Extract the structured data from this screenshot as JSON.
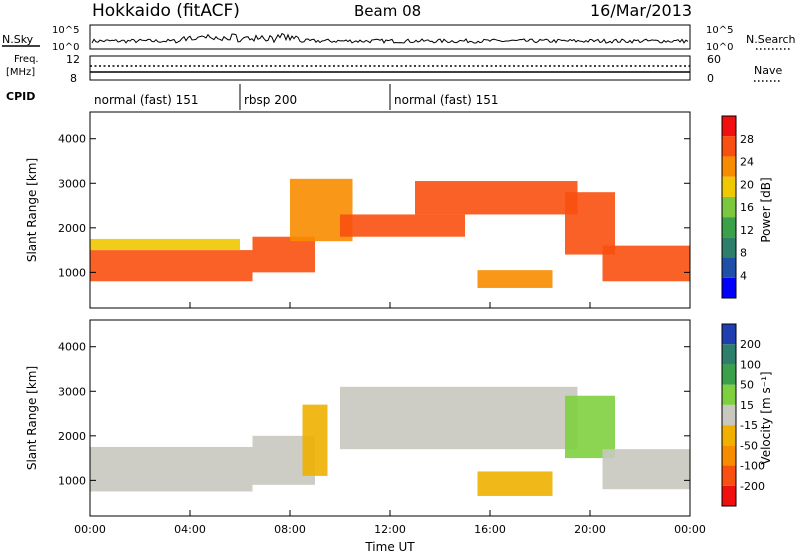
{
  "header": {
    "radar": "Hokkaido (fitACF)",
    "beam": "Beam 08",
    "date": "16/Mar/2013"
  },
  "top_strip": {
    "nsky_label": "N.Sky",
    "nsearch_label": "N.Search",
    "left_ticks": [
      "10^5",
      "10^0"
    ],
    "right_ticks": [
      "10^5",
      "10^0"
    ],
    "freq_label_1": "Freq.",
    "freq_label_2": "[MHz]",
    "freq_ticks": [
      "12",
      "8"
    ],
    "nave_label": "Nave",
    "nave_ticks": [
      "60",
      "0"
    ],
    "cpid_label": "CPID",
    "cpid_segments": [
      {
        "start": 0,
        "end": 6.0,
        "label": "normal (fast) 151"
      },
      {
        "start": 6.0,
        "end": 12.0,
        "label": "rbsp 200"
      },
      {
        "start": 12.0,
        "end": 24.0,
        "label": "normal (fast) 151"
      }
    ]
  },
  "chart_data": [
    {
      "type": "heatmap",
      "title": "",
      "xlabel": "Time UT",
      "ylabel": "Slant Range [km]",
      "x_ticks": [
        "00:00",
        "04:00",
        "08:00",
        "12:00",
        "16:00",
        "20:00",
        "00:00"
      ],
      "y_ticks": [
        "1000",
        "2000",
        "3000",
        "4000"
      ],
      "xlim": [
        0,
        24
      ],
      "ylim": [
        200,
        4600
      ],
      "colorbar": {
        "label": "Power [dB]",
        "ticks": [
          "28",
          "24",
          "20",
          "16",
          "12",
          "8",
          "4"
        ],
        "range": [
          0,
          32
        ],
        "colors": [
          "#0000ff",
          "#1f4fa8",
          "#2e7f6a",
          "#3aa04a",
          "#7bc840",
          "#f0c800",
          "#f88c00",
          "#f85010",
          "#f01010"
        ]
      },
      "bands": [
        {
          "t0": 0,
          "t1": 6.5,
          "r0": 800,
          "r1": 1500,
          "level": 28
        },
        {
          "t0": 0,
          "t1": 6,
          "r0": 1500,
          "r1": 1750,
          "level": 20
        },
        {
          "t0": 6.5,
          "t1": 9,
          "r0": 1000,
          "r1": 1800,
          "level": 26
        },
        {
          "t0": 8,
          "t1": 10.5,
          "r0": 1700,
          "r1": 3100,
          "level": 24
        },
        {
          "t0": 10,
          "t1": 15,
          "r0": 1800,
          "r1": 2300,
          "level": 27
        },
        {
          "t0": 13,
          "t1": 19.5,
          "r0": 2300,
          "r1": 3050,
          "level": 26
        },
        {
          "t0": 15.5,
          "t1": 18.5,
          "r0": 650,
          "r1": 1050,
          "level": 22
        },
        {
          "t0": 19,
          "t1": 21,
          "r0": 1400,
          "r1": 2800,
          "level": 25
        },
        {
          "t0": 20.5,
          "t1": 24,
          "r0": 800,
          "r1": 1600,
          "level": 28
        }
      ]
    },
    {
      "type": "heatmap",
      "title": "",
      "xlabel": "Time UT",
      "ylabel": "Slant Range [km]",
      "x_ticks": [
        "00:00",
        "04:00",
        "08:00",
        "12:00",
        "16:00",
        "20:00",
        "00:00"
      ],
      "y_ticks": [
        "1000",
        "2000",
        "3000",
        "4000"
      ],
      "xlim": [
        0,
        24
      ],
      "ylim": [
        200,
        4600
      ],
      "colorbar": {
        "label": "Velocity [m s⁻¹]",
        "ticks": [
          "200",
          "100",
          "50",
          "15",
          "-15",
          "-50",
          "-100",
          "-200"
        ],
        "range": [
          -250,
          250
        ],
        "colors": [
          "#f01010",
          "#f85010",
          "#f88c00",
          "#f0b000",
          "#c8c8c0",
          "#7ed040",
          "#3aa04a",
          "#2e7f6a",
          "#1f3fb0"
        ]
      },
      "bands": [
        {
          "t0": 0,
          "t1": 6.5,
          "r0": 750,
          "r1": 1750,
          "level": 0
        },
        {
          "t0": 6.5,
          "t1": 9,
          "r0": 900,
          "r1": 2000,
          "level": 0
        },
        {
          "t0": 8.5,
          "t1": 9.5,
          "r0": 1100,
          "r1": 2700,
          "level": -70
        },
        {
          "t0": 10,
          "t1": 19.5,
          "r0": 1700,
          "r1": 3100,
          "level": 0
        },
        {
          "t0": 15.5,
          "t1": 18.5,
          "r0": 650,
          "r1": 1200,
          "level": -70
        },
        {
          "t0": 19,
          "t1": 21,
          "r0": 1500,
          "r1": 2900,
          "level": 40
        },
        {
          "t0": 20.5,
          "t1": 24,
          "r0": 800,
          "r1": 1700,
          "level": 0
        }
      ]
    }
  ]
}
